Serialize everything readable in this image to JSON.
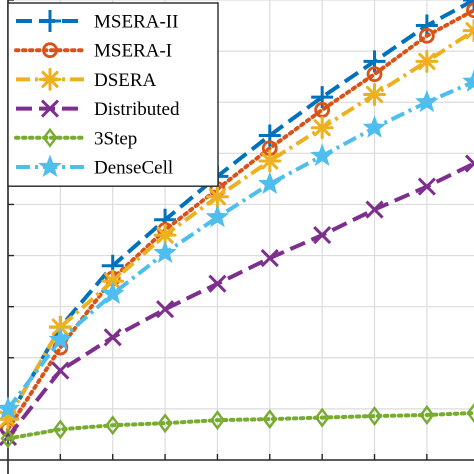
{
  "chart_data": {
    "type": "line",
    "title": "",
    "xlabel": "",
    "ylabel": "",
    "xlim": [
      0,
      8.9
    ],
    "ylim": [
      0,
      9
    ],
    "grid": true,
    "legend": "top-left",
    "series": [
      {
        "name": "MSERA-II",
        "color": "#0072BD",
        "dash": "dashed",
        "marker": "plus-icon",
        "x": [
          0,
          1,
          2,
          3,
          4,
          5,
          6,
          7,
          8,
          8.9
        ],
        "y": [
          0.8,
          2.6,
          3.8,
          4.7,
          5.55,
          6.35,
          7.1,
          7.8,
          8.5,
          9.0
        ]
      },
      {
        "name": "MSERA-I",
        "color": "#D95319",
        "dash": "dotted",
        "marker": "circle-icon",
        "x": [
          0,
          1,
          2,
          3,
          4,
          5,
          6,
          7,
          8,
          8.9
        ],
        "y": [
          0.6,
          2.2,
          3.55,
          4.5,
          5.3,
          6.1,
          6.85,
          7.55,
          8.3,
          8.8
        ]
      },
      {
        "name": "DSERA",
        "color": "#EDB120",
        "dash": "dashdot",
        "marker": "asterisk-icon",
        "x": [
          0,
          1,
          2,
          3,
          4,
          5,
          6,
          7,
          8,
          8.9
        ],
        "y": [
          0.8,
          2.6,
          3.5,
          4.4,
          5.15,
          5.85,
          6.5,
          7.15,
          7.8,
          8.4
        ]
      },
      {
        "name": "Distributed",
        "color": "#7E2F8E",
        "dash": "dashed",
        "marker": "cross-icon",
        "x": [
          0,
          1,
          2,
          3,
          4,
          5,
          6,
          7,
          8,
          8.9
        ],
        "y": [
          0.45,
          1.75,
          2.4,
          2.95,
          3.45,
          3.95,
          4.4,
          4.9,
          5.35,
          5.8
        ]
      },
      {
        "name": "3Step",
        "color": "#77AC30",
        "dash": "dotted",
        "marker": "diamond-icon",
        "x": [
          0,
          1,
          2,
          3,
          4,
          5,
          6,
          7,
          8,
          8.9
        ],
        "y": [
          0.42,
          0.6,
          0.68,
          0.72,
          0.78,
          0.8,
          0.83,
          0.86,
          0.88,
          0.92
        ]
      },
      {
        "name": "DenseCell",
        "color": "#4DBEEE",
        "dash": "dashdot",
        "marker": "star-icon",
        "x": [
          0,
          1,
          2,
          3,
          4,
          5,
          6,
          7,
          8,
          8.9
        ],
        "y": [
          1.0,
          2.35,
          3.25,
          4.05,
          4.75,
          5.4,
          5.95,
          6.5,
          7.0,
          7.4
        ]
      }
    ]
  }
}
